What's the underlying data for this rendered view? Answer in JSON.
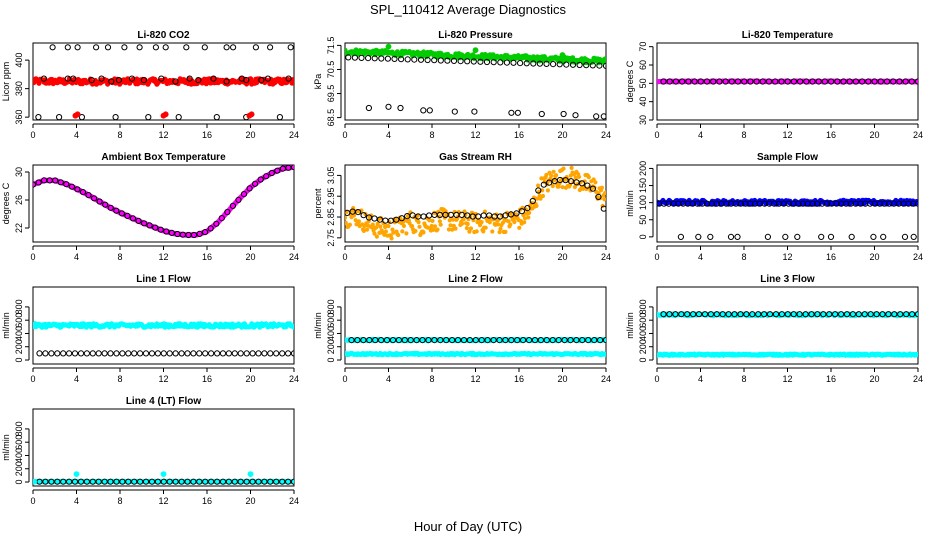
{
  "figure": {
    "title": "SPL_110412  Average Diagnostics",
    "xlabel": "Hour of Day (UTC)"
  },
  "colors": {
    "black": "#000000",
    "red": "#ff0000",
    "green": "#00cc00",
    "magenta": "#ff00ff",
    "orange": "#ffa500",
    "blue": "#0000ff",
    "cyan": "#00ffff"
  },
  "chart_data": [
    {
      "type": "scatter",
      "title": "Li-820 CO2",
      "ylabel": "Licor ppm",
      "xlim": [
        0,
        24
      ],
      "ylim": [
        358,
        412
      ],
      "xticks": [
        "0",
        "4",
        "8",
        "12",
        "16",
        "20",
        "24"
      ],
      "yticks": [
        "360",
        "380",
        "400"
      ],
      "series": [
        {
          "color": "red",
          "kind": "band",
          "x_range": [
            0,
            24
          ],
          "y_center": 385,
          "spread": 2
        },
        {
          "color": "black",
          "kind": "points",
          "x": [
            0.5,
            1.8,
            2.4,
            3.2,
            4.1,
            4.5,
            5.8,
            6.9,
            7.6,
            8.4,
            9.8,
            10.6,
            11.3,
            12.2,
            13.4,
            14.1,
            15.8,
            16.9,
            17.8,
            18.4,
            19.6,
            20.5,
            21.8,
            22.7,
            23.7
          ],
          "y": [
            360,
            409,
            360,
            409,
            409,
            360,
            409,
            409,
            360,
            409,
            409,
            360,
            409,
            409,
            360,
            409,
            409,
            360,
            409,
            409,
            360,
            409,
            409,
            360,
            409
          ]
        },
        {
          "color": "black",
          "kind": "points",
          "x": [
            1.0,
            3.2,
            3.7,
            5.4,
            6.3,
            7.2,
            7.9,
            9.1,
            10.2,
            11.8,
            13.1,
            14.4,
            15.2,
            16.6,
            17.8,
            19.2,
            19.6,
            21.0,
            21.6,
            23.5
          ],
          "y": [
            387,
            387,
            387,
            386,
            387,
            385,
            386,
            387,
            386,
            387,
            385,
            387,
            386,
            387,
            385,
            387,
            386,
            386,
            387,
            387
          ]
        },
        {
          "color": "red",
          "kind": "points",
          "x": [
            0.1,
            3.9,
            4.1,
            12.0,
            12.2,
            19.9,
            20.1
          ],
          "y": [
            386,
            361,
            362,
            361,
            362,
            361,
            362
          ]
        }
      ]
    },
    {
      "type": "scatter",
      "title": "Li-820 Pressure",
      "ylabel": "kPa",
      "xlim": [
        0,
        24
      ],
      "ylim": [
        68.4,
        71.6
      ],
      "xticks": [
        "0",
        "4",
        "8",
        "12",
        "16",
        "20",
        "24"
      ],
      "yticks": [
        "68.5",
        "69.5",
        "70.5",
        "71.5"
      ],
      "series": [
        {
          "color": "green",
          "kind": "band_linear",
          "x_range": [
            0,
            24
          ],
          "y_start": 71.25,
          "y_end": 70.85,
          "spread": 0.1
        },
        {
          "color": "black",
          "kind": "line_points",
          "x_range": [
            0.3,
            24
          ],
          "y_start": 71.0,
          "y_end": 70.65,
          "n": 40
        },
        {
          "color": "black",
          "kind": "points",
          "x": [
            2.2,
            4.0,
            5.1,
            7.2,
            7.8,
            10.1,
            11.9,
            15.3,
            15.9,
            18.1,
            20.1,
            21.2,
            23.1,
            23.8
          ],
          "y": [
            68.9,
            68.95,
            68.9,
            68.8,
            68.8,
            68.75,
            68.75,
            68.7,
            68.7,
            68.65,
            68.65,
            68.6,
            68.55,
            68.55
          ]
        },
        {
          "color": "green",
          "kind": "points",
          "x": [
            4.0,
            12.0,
            20.0
          ],
          "y": [
            71.45,
            71.3,
            71.1
          ]
        }
      ]
    },
    {
      "type": "scatter",
      "title": "Li-820 Temperature",
      "ylabel": "degrees C",
      "xlim": [
        0,
        24
      ],
      "ylim": [
        30,
        72
      ],
      "xticks": [
        "0",
        "4",
        "8",
        "12",
        "16",
        "20",
        "24"
      ],
      "yticks": [
        "30",
        "40",
        "50",
        "60",
        "70"
      ],
      "series": [
        {
          "color": "magenta",
          "kind": "band",
          "x_range": [
            0,
            24
          ],
          "y_center": 51,
          "spread": 0.3
        },
        {
          "color": "black",
          "kind": "line_points",
          "x_range": [
            0.6,
            24
          ],
          "y_start": 51,
          "y_end": 51,
          "n": 42
        }
      ]
    },
    {
      "type": "scatter",
      "title": "Ambient Box Temperature",
      "ylabel": "degrees C",
      "xlim": [
        0,
        24
      ],
      "ylim": [
        20,
        31
      ],
      "xticks": [
        "0",
        "4",
        "8",
        "12",
        "16",
        "20",
        "24"
      ],
      "yticks": [
        "22",
        "26",
        "30"
      ],
      "series": [
        {
          "color": "magenta",
          "kind": "curve",
          "x": [
            0,
            1,
            2,
            3,
            4,
            5,
            6,
            7,
            8,
            9,
            10,
            11,
            12,
            13,
            14,
            15,
            16,
            17,
            18,
            19,
            20,
            21,
            22,
            23,
            24
          ],
          "y": [
            28.2,
            28.8,
            28.8,
            28.3,
            27.6,
            26.8,
            25.9,
            25.0,
            24.2,
            23.5,
            22.8,
            22.2,
            21.6,
            21.2,
            21.0,
            21.0,
            21.5,
            22.8,
            24.5,
            26.2,
            27.8,
            29.0,
            29.9,
            30.5,
            30.7
          ]
        },
        {
          "color": "black",
          "kind": "curve_points",
          "x": [
            0,
            1,
            2,
            3,
            4,
            5,
            6,
            7,
            8,
            9,
            10,
            11,
            12,
            13,
            14,
            15,
            16,
            17,
            18,
            19,
            20,
            21,
            22,
            23,
            24
          ],
          "y": [
            28.2,
            28.8,
            28.8,
            28.3,
            27.6,
            26.8,
            25.9,
            25.0,
            24.2,
            23.5,
            22.8,
            22.2,
            21.6,
            21.2,
            21.0,
            21.0,
            21.5,
            22.8,
            24.5,
            26.2,
            27.8,
            29.0,
            29.9,
            30.5,
            30.7
          ]
        }
      ]
    },
    {
      "type": "scatter",
      "title": "Gas Stream RH",
      "ylabel": "percent",
      "xlim": [
        0,
        24
      ],
      "ylim": [
        2.73,
        3.1
      ],
      "xticks": [
        "0",
        "4",
        "8",
        "12",
        "16",
        "20",
        "24"
      ],
      "yticks": [
        "2.75",
        "2.85",
        "2.95",
        "3.05"
      ],
      "series": [
        {
          "color": "orange",
          "kind": "noisy_curve",
          "x": [
            0,
            1,
            2,
            3,
            4,
            5,
            6,
            7,
            8,
            9,
            10,
            11,
            12,
            13,
            14,
            15,
            16,
            17,
            18,
            19,
            20,
            21,
            22,
            23,
            24
          ],
          "y": [
            2.85,
            2.86,
            2.82,
            2.8,
            2.79,
            2.8,
            2.83,
            2.81,
            2.83,
            2.84,
            2.83,
            2.83,
            2.82,
            2.83,
            2.82,
            2.83,
            2.84,
            2.87,
            2.99,
            3.03,
            3.04,
            3.04,
            3.01,
            2.99,
            2.93
          ],
          "spread": 0.05
        },
        {
          "color": "black",
          "kind": "curve_points",
          "x": [
            0.2,
            1,
            2,
            3,
            4,
            5,
            6,
            7,
            8,
            9,
            10,
            11,
            12,
            13,
            14,
            15,
            16,
            17,
            18,
            19,
            20,
            21,
            22,
            23,
            23.8
          ],
          "y": [
            2.87,
            2.88,
            2.85,
            2.84,
            2.83,
            2.84,
            2.86,
            2.85,
            2.86,
            2.86,
            2.86,
            2.86,
            2.85,
            2.86,
            2.85,
            2.86,
            2.87,
            2.9,
            3.0,
            3.02,
            3.03,
            3.02,
            3.01,
            2.98,
            2.89
          ]
        }
      ]
    },
    {
      "type": "scatter",
      "title": "Sample Flow",
      "ylabel": "ml/min",
      "xlim": [
        0,
        24
      ],
      "ylim": [
        -15,
        210
      ],
      "xticks": [
        "0",
        "4",
        "8",
        "12",
        "16",
        "20",
        "24"
      ],
      "yticks": [
        "0",
        "50",
        "100",
        "150",
        "200"
      ],
      "series": [
        {
          "color": "blue",
          "kind": "band",
          "x_range": [
            0,
            24
          ],
          "y_center": 101,
          "spread": 6
        },
        {
          "color": "black",
          "kind": "line_points",
          "x_range": [
            0.2,
            24
          ],
          "y_start": 97,
          "y_end": 97,
          "n": 55
        },
        {
          "color": "black",
          "kind": "points",
          "x": [
            2.2,
            3.8,
            4.9,
            6.8,
            7.4,
            10.2,
            11.8,
            12.9,
            15.1,
            16.0,
            17.9,
            19.9,
            20.8,
            22.8,
            23.6
          ],
          "y": [
            0,
            0,
            0,
            0,
            0,
            0,
            0,
            0,
            0,
            0,
            0,
            0,
            0,
            0,
            0
          ]
        }
      ]
    },
    {
      "type": "scatter",
      "title": "Line 1 Flow",
      "ylabel": "ml/min",
      "xlim": [
        0,
        24
      ],
      "ylim": [
        -60,
        1100
      ],
      "xticks": [
        "0",
        "4",
        "8",
        "12",
        "16",
        "20",
        "24"
      ],
      "yticks": [
        "0",
        "200",
        "400",
        "600",
        "800"
      ],
      "series": [
        {
          "color": "cyan",
          "kind": "band",
          "x_range": [
            0,
            24
          ],
          "y_center": 520,
          "spread": 28
        },
        {
          "color": "black",
          "kind": "line_points",
          "x_range": [
            0.6,
            24
          ],
          "y_start": 100,
          "y_end": 100,
          "n": 44
        }
      ]
    },
    {
      "type": "scatter",
      "title": "Line 2 Flow",
      "ylabel": "ml/min",
      "xlim": [
        0,
        24
      ],
      "ylim": [
        -60,
        1100
      ],
      "xticks": [
        "0",
        "4",
        "8",
        "12",
        "16",
        "20",
        "24"
      ],
      "yticks": [
        "0",
        "200",
        "400",
        "600",
        "800"
      ],
      "series": [
        {
          "color": "cyan",
          "kind": "band",
          "x_range": [
            0,
            24
          ],
          "y_center": 90,
          "spread": 10
        },
        {
          "color": "cyan",
          "kind": "band",
          "x_range": [
            0,
            24
          ],
          "y_center": 300,
          "spread": 10
        },
        {
          "color": "black",
          "kind": "line_points",
          "x_range": [
            0.6,
            24
          ],
          "y_start": 300,
          "y_end": 300,
          "n": 44
        }
      ]
    },
    {
      "type": "scatter",
      "title": "Line 3 Flow",
      "ylabel": "ml/min",
      "xlim": [
        0,
        24
      ],
      "ylim": [
        -60,
        1100
      ],
      "xticks": [
        "0",
        "4",
        "8",
        "12",
        "16",
        "20",
        "24"
      ],
      "yticks": [
        "0",
        "200",
        "400",
        "600",
        "800"
      ],
      "series": [
        {
          "color": "cyan",
          "kind": "band",
          "x_range": [
            0,
            24
          ],
          "y_center": 80,
          "spread": 10
        },
        {
          "color": "cyan",
          "kind": "band",
          "x_range": [
            0,
            24
          ],
          "y_center": 680,
          "spread": 14
        },
        {
          "color": "black",
          "kind": "line_points",
          "x_range": [
            0.6,
            24
          ],
          "y_start": 690,
          "y_end": 690,
          "n": 44
        }
      ]
    },
    {
      "type": "scatter",
      "title": "Line 4 (LT) Flow",
      "ylabel": "ml/min",
      "xlim": [
        0,
        24
      ],
      "ylim": [
        -60,
        1100
      ],
      "xticks": [
        "0",
        "4",
        "8",
        "12",
        "16",
        "20",
        "24"
      ],
      "yticks": [
        "0",
        "200",
        "400",
        "600",
        "800"
      ],
      "series": [
        {
          "color": "cyan",
          "kind": "band",
          "x_range": [
            0,
            24
          ],
          "y_center": 5,
          "spread": 5
        },
        {
          "color": "black",
          "kind": "line_points",
          "x_range": [
            0.6,
            24
          ],
          "y_start": 5,
          "y_end": 5,
          "n": 44
        },
        {
          "color": "cyan",
          "kind": "points",
          "x": [
            0.1,
            4.0,
            12.0,
            20.0
          ],
          "y": [
            5,
            120,
            120,
            120
          ]
        }
      ]
    }
  ]
}
